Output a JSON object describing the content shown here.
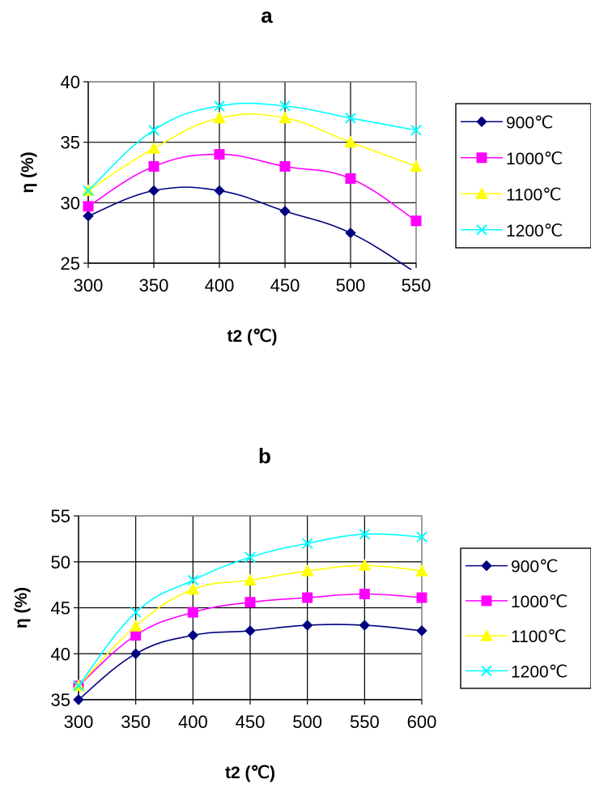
{
  "chart_data": [
    {
      "type": "line",
      "title": "a",
      "xlabel": "t2 (℃)",
      "ylabel": "η (%)",
      "x": [
        300,
        350,
        400,
        450,
        500,
        550
      ],
      "xlim": [
        300,
        550
      ],
      "ylim": [
        25,
        40
      ],
      "yticks": [
        25,
        30,
        35,
        40
      ],
      "grid": true,
      "legend_position": "right",
      "series": [
        {
          "name": "900℃",
          "color": "#000080",
          "marker": "diamond",
          "values": [
            28.9,
            31.0,
            31.0,
            29.3,
            27.5,
            24.2
          ]
        },
        {
          "name": "1000℃",
          "color": "#ff00ff",
          "marker": "square",
          "values": [
            29.7,
            33.0,
            34.0,
            33.0,
            32.0,
            28.5
          ]
        },
        {
          "name": "1100℃",
          "color": "#ffff00",
          "marker": "triangle",
          "values": [
            31.0,
            34.5,
            37.0,
            37.0,
            35.0,
            33.0
          ]
        },
        {
          "name": "1200℃",
          "color": "#00ffff",
          "marker": "x",
          "values": [
            31.0,
            36.0,
            38.0,
            38.0,
            37.0,
            36.0
          ]
        }
      ]
    },
    {
      "type": "line",
      "title": "b",
      "xlabel": "t2 (℃)",
      "ylabel": "η (%)",
      "x": [
        300,
        350,
        400,
        450,
        500,
        550,
        600
      ],
      "xlim": [
        300,
        600
      ],
      "ylim": [
        35,
        55
      ],
      "yticks": [
        35,
        40,
        45,
        50,
        55
      ],
      "grid": true,
      "legend_position": "right",
      "series": [
        {
          "name": "900℃",
          "color": "#000080",
          "marker": "diamond",
          "values": [
            35.0,
            40.0,
            42.0,
            42.5,
            43.1,
            43.1,
            42.5
          ]
        },
        {
          "name": "1000℃",
          "color": "#ff00ff",
          "marker": "square",
          "values": [
            36.5,
            42.0,
            44.5,
            45.6,
            46.1,
            46.5,
            46.1
          ]
        },
        {
          "name": "1100℃",
          "color": "#ffff00",
          "marker": "triangle",
          "values": [
            36.5,
            43.0,
            47.0,
            48.0,
            49.0,
            49.6,
            49.0
          ]
        },
        {
          "name": "1200℃",
          "color": "#00ffff",
          "marker": "x",
          "values": [
            36.5,
            44.5,
            48.0,
            50.5,
            52.0,
            53.0,
            52.7
          ]
        }
      ]
    }
  ]
}
